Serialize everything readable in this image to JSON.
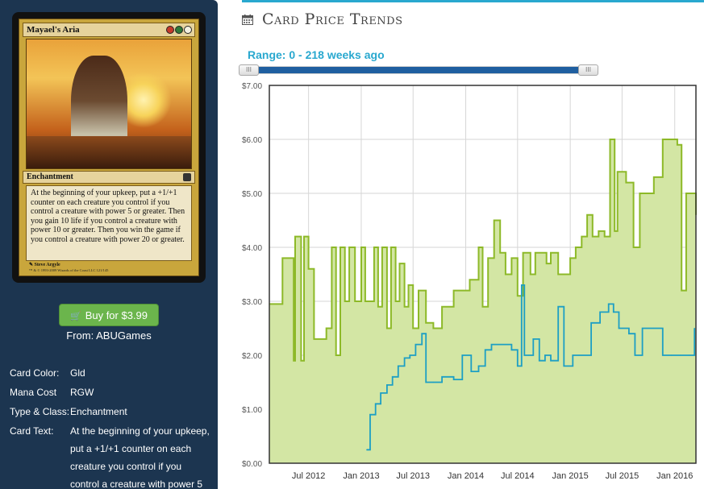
{
  "card": {
    "name": "Mayael's Aria",
    "type_line": "Enchantment",
    "rules_text": "At the beginning of your upkeep, put a +1/+1 counter on each creature you control if you control a creature with power 5 or greater. Then you gain 10 life if you control a creature with power 10 or greater. Then you win the game if you control a creature with power 20 or greater.",
    "artist": "Steve Argyle",
    "copyright": "™ & © 1993-2009 Wizards of the Coast LLC 121/145",
    "mana_colors": [
      "#c43a2a",
      "#2f7a3a",
      "#f3f0e0"
    ]
  },
  "buy": {
    "label": "Buy for $3.99",
    "icon": "shopping-cart-icon",
    "color": "#6bb54c"
  },
  "from": "From: ABUGames",
  "info": [
    {
      "key": "Card Color:",
      "value": "Gld"
    },
    {
      "key": "Mana Cost",
      "value": "RGW"
    },
    {
      "key": "Type & Class:",
      "value": "Enchantment"
    },
    {
      "key": "Card Text:",
      "value": "At the beginning of your upkeep, put a +1/+1 counter on each creature you control if you control a creature with power 5"
    }
  ],
  "section_title": "Card Price Trends",
  "section_icon": "calendar-icon",
  "range_label": "Range: 0 - 218 weeks ago",
  "slider": {
    "min": 0,
    "max": 218,
    "low": 0,
    "high": 218
  },
  "colors": {
    "accent": "#29a8cf",
    "series_retail": "#8db928",
    "series_buylist": "#1d9fc4",
    "fill": "#d3e6a4"
  },
  "chart_data": {
    "type": "line",
    "ylim": [
      0,
      7
    ],
    "y_ticks": [
      "$0.00",
      "$1.00",
      "$2.00",
      "$3.00",
      "$4.00",
      "$5.00",
      "$6.00",
      "$7.00"
    ],
    "x_ticks": [
      "Jul 2012",
      "Jan 2013",
      "Jul 2013",
      "Jan 2014",
      "Jul 2014",
      "Jan 2015",
      "Jul 2015",
      "Jan 2016"
    ],
    "x_tick_values": [
      "2012-07-01",
      "2013-01-01",
      "2013-07-01",
      "2014-01-01",
      "2014-07-01",
      "2015-01-01",
      "2015-07-01",
      "2016-01-01"
    ],
    "x_range": [
      "2012-02-15",
      "2016-03-15"
    ],
    "series": [
      {
        "style": "area",
        "x": [
          "2012-02-15",
          "2012-04-01",
          "2012-05-01",
          "2012-05-10",
          "2012-05-15",
          "2012-05-25",
          "2012-06-05",
          "2012-06-15",
          "2012-07-01",
          "2012-07-20",
          "2012-09-01",
          "2012-09-20",
          "2012-10-05",
          "2012-10-20",
          "2012-11-05",
          "2012-11-20",
          "2012-12-10",
          "2013-01-01",
          "2013-01-15",
          "2013-02-15",
          "2013-03-01",
          "2013-03-15",
          "2013-04-01",
          "2013-04-15",
          "2013-05-01",
          "2013-05-15",
          "2013-06-01",
          "2013-06-15",
          "2013-07-01",
          "2013-07-20",
          "2013-08-15",
          "2013-09-10",
          "2013-10-10",
          "2013-11-20",
          "2014-01-15",
          "2014-02-15",
          "2014-03-01",
          "2014-03-20",
          "2014-04-10",
          "2014-05-01",
          "2014-05-20",
          "2014-06-10",
          "2014-07-01",
          "2014-07-20",
          "2014-08-15",
          "2014-09-01",
          "2014-10-10",
          "2014-10-25",
          "2014-11-20",
          "2015-01-01",
          "2015-01-20",
          "2015-02-10",
          "2015-03-01",
          "2015-03-20",
          "2015-04-10",
          "2015-05-01",
          "2015-05-20",
          "2015-06-05",
          "2015-06-15",
          "2015-07-15",
          "2015-08-10",
          "2015-09-01",
          "2015-09-25",
          "2015-10-20",
          "2015-11-20",
          "2015-12-15",
          "2016-01-10",
          "2016-01-25",
          "2016-02-10",
          "2016-02-25",
          "2016-03-15"
        ],
        "values": [
          2.95,
          3.8,
          3.8,
          1.9,
          4.2,
          4.2,
          1.9,
          4.2,
          3.6,
          2.3,
          2.5,
          4.0,
          2.0,
          4.0,
          3.0,
          4.0,
          3.0,
          4.0,
          3.0,
          4.0,
          2.9,
          4.0,
          2.5,
          4.0,
          3.0,
          3.7,
          2.9,
          3.3,
          2.5,
          3.2,
          2.6,
          2.5,
          2.9,
          3.2,
          3.4,
          4.0,
          2.9,
          3.8,
          4.5,
          3.9,
          3.5,
          3.8,
          3.1,
          3.9,
          3.5,
          3.9,
          3.7,
          3.9,
          3.5,
          3.8,
          4.0,
          4.2,
          4.6,
          4.2,
          4.3,
          4.2,
          6.0,
          4.3,
          5.4,
          5.2,
          4.0,
          5.0,
          5.0,
          5.3,
          6.0,
          6.0,
          5.9,
          3.2,
          5.0,
          5.0,
          4.6
        ]
      },
      {
        "style": "line",
        "x": [
          "2013-01-20",
          "2013-02-01",
          "2013-02-20",
          "2013-03-10",
          "2013-04-01",
          "2013-04-20",
          "2013-05-10",
          "2013-06-01",
          "2013-06-20",
          "2013-07-10",
          "2013-08-01",
          "2013-08-15",
          "2013-09-10",
          "2013-10-10",
          "2013-11-20",
          "2013-12-20",
          "2014-01-20",
          "2014-02-15",
          "2014-03-10",
          "2014-04-01",
          "2014-04-25",
          "2014-05-20",
          "2014-06-10",
          "2014-07-01",
          "2014-07-15",
          "2014-07-25",
          "2014-08-10",
          "2014-08-25",
          "2014-09-15",
          "2014-10-05",
          "2014-10-25",
          "2014-11-20",
          "2014-12-10",
          "2015-01-10",
          "2015-02-01",
          "2015-03-15",
          "2015-04-15",
          "2015-05-15",
          "2015-06-01",
          "2015-06-20",
          "2015-07-05",
          "2015-07-25",
          "2015-08-15",
          "2015-09-10",
          "2015-10-20",
          "2015-11-20",
          "2015-12-20",
          "2016-01-20",
          "2016-02-20",
          "2016-03-10"
        ],
        "values": [
          0.25,
          0.9,
          1.1,
          1.3,
          1.45,
          1.6,
          1.8,
          1.95,
          2.0,
          2.2,
          2.4,
          1.5,
          1.5,
          1.6,
          1.55,
          2.0,
          1.7,
          1.8,
          2.1,
          2.2,
          2.2,
          2.2,
          2.1,
          1.8,
          3.3,
          2.0,
          2.0,
          2.3,
          1.9,
          2.0,
          1.9,
          2.9,
          1.8,
          2.0,
          2.0,
          2.6,
          2.8,
          2.95,
          2.8,
          2.5,
          2.5,
          2.4,
          2.0,
          2.5,
          2.5,
          2.0,
          2.0,
          2.0,
          2.0,
          2.5
        ]
      }
    ]
  }
}
